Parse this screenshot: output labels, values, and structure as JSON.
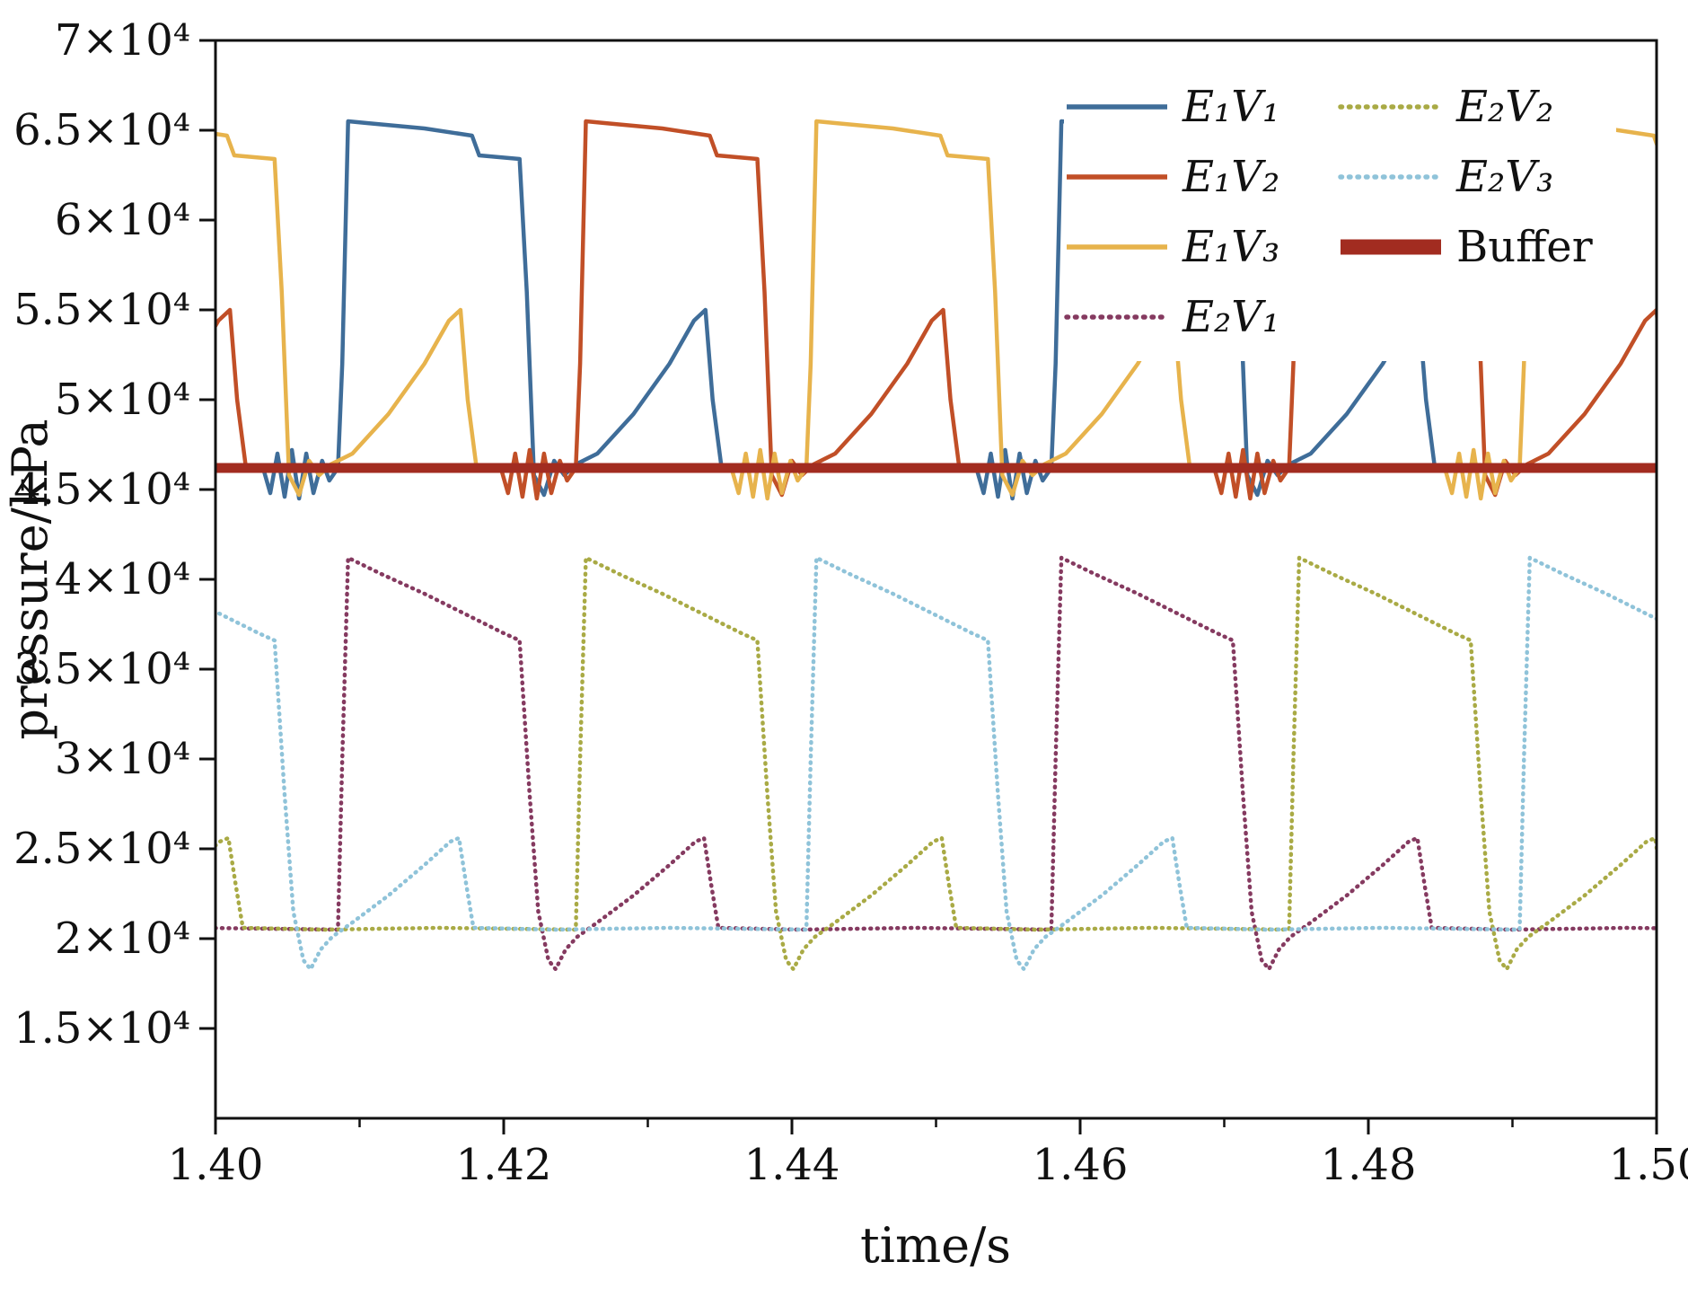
{
  "figure_title": "",
  "chart_data": {
    "type": "line",
    "title": "",
    "xlabel": "time/s",
    "ylabel": "pressure/kPa",
    "xlim": [
      1.4,
      1.5
    ],
    "ylim": [
      10000,
      70000
    ],
    "grid": false,
    "legend_position": "upper-right-inside",
    "x_ticks": [
      1.4,
      1.42,
      1.44,
      1.46,
      1.48,
      1.5
    ],
    "x_tick_labels": [
      "1.40",
      "1.42",
      "1.44",
      "1.46",
      "1.48",
      "1.50"
    ],
    "x_minor_ticks": [
      1.41,
      1.43,
      1.45,
      1.47,
      1.49
    ],
    "y_ticks": [
      70000,
      65000,
      60000,
      55000,
      50000,
      45000,
      40000,
      35000,
      30000,
      25000,
      20000,
      15000
    ],
    "y_tick_labels": [
      "7×10⁴",
      "6.5×10⁴",
      "6×10⁴",
      "5.5×10⁴",
      "5×10⁴",
      "4.5×10⁴",
      "4×10⁴",
      "3.5×10⁴",
      "3×10⁴",
      "2.5×10⁴",
      "2×10⁴",
      "1.5×10⁴"
    ],
    "period_s": 0.0495,
    "cycles": {
      "e1": [
        [
          0.0,
          46200
        ],
        [
          0.0003,
          52000
        ],
        [
          0.0007,
          65500
        ],
        [
          0.002,
          65400
        ],
        [
          0.006,
          65100
        ],
        [
          0.0093,
          64700
        ],
        [
          0.0098,
          63600
        ],
        [
          0.0126,
          63400
        ],
        [
          0.0131,
          56000
        ],
        [
          0.0136,
          45800
        ],
        [
          0.0143,
          44700
        ],
        [
          0.015,
          46600
        ],
        [
          0.0157,
          45800
        ],
        [
          0.0165,
          46400
        ],
        [
          0.018,
          47000
        ],
        [
          0.0205,
          49200
        ],
        [
          0.023,
          52000
        ],
        [
          0.0247,
          54400
        ],
        [
          0.0255,
          55000
        ],
        [
          0.026,
          50000
        ],
        [
          0.0266,
          46300
        ],
        [
          0.032,
          46200
        ],
        [
          0.039,
          46200
        ],
        [
          0.0443,
          46200
        ],
        [
          0.0448,
          44800
        ],
        [
          0.0453,
          47000
        ],
        [
          0.0458,
          44600
        ],
        [
          0.0463,
          47200
        ],
        [
          0.0468,
          44500
        ],
        [
          0.0473,
          47000
        ],
        [
          0.0478,
          44800
        ],
        [
          0.0484,
          46600
        ],
        [
          0.0489,
          45500
        ],
        [
          0.0495,
          46200
        ]
      ],
      "e2": [
        [
          0.0,
          20500
        ],
        [
          0.0003,
          30000
        ],
        [
          0.0007,
          41200
        ],
        [
          0.003,
          40300
        ],
        [
          0.006,
          39200
        ],
        [
          0.009,
          38000
        ],
        [
          0.0115,
          37000
        ],
        [
          0.0126,
          36600
        ],
        [
          0.0133,
          28000
        ],
        [
          0.0139,
          21500
        ],
        [
          0.0146,
          18800
        ],
        [
          0.0151,
          18300
        ],
        [
          0.0158,
          19400
        ],
        [
          0.0166,
          20100
        ],
        [
          0.018,
          20900
        ],
        [
          0.0205,
          22400
        ],
        [
          0.023,
          24100
        ],
        [
          0.0248,
          25400
        ],
        [
          0.0254,
          25600
        ],
        [
          0.0259,
          23000
        ],
        [
          0.0264,
          20600
        ],
        [
          0.032,
          20500
        ],
        [
          0.04,
          20600
        ],
        [
          0.0495,
          20500
        ]
      ]
    },
    "series": [
      {
        "key": "e1v1",
        "name": "E₁V₁",
        "color": "#3f6d99",
        "line": "solid",
        "width": 4.5,
        "phase_plateau_start_s": 1.4085,
        "cycle_ref": "e1"
      },
      {
        "key": "e1v2",
        "name": "E₁V₂",
        "color": "#c14f27",
        "line": "solid",
        "width": 4.5,
        "phase_plateau_start_s": 1.425,
        "cycle_ref": "e1"
      },
      {
        "key": "e1v3",
        "name": "E₁V₃",
        "color": "#e7b34c",
        "line": "solid",
        "width": 4.5,
        "phase_plateau_start_s": 1.3915,
        "cycle_ref": "e1"
      },
      {
        "key": "e2v1",
        "name": "E₂V₁",
        "color": "#853a60",
        "line": "dotted",
        "width": 4.5,
        "phase_plateau_start_s": 1.4085,
        "cycle_ref": "e2"
      },
      {
        "key": "e2v2",
        "name": "E₂V₂",
        "color": "#a9aa45",
        "line": "dotted",
        "width": 4.5,
        "phase_plateau_start_s": 1.425,
        "cycle_ref": "e2"
      },
      {
        "key": "e2v3",
        "name": "E₂V₃",
        "color": "#8fc3d9",
        "line": "dotted",
        "width": 4.5,
        "phase_plateau_start_s": 1.3915,
        "cycle_ref": "e2"
      },
      {
        "key": "buffer",
        "name": "Buffer",
        "color": "#a22c20",
        "line": "solid",
        "width": 11,
        "constant_kpa": 46200
      }
    ]
  },
  "legend": {
    "columns": [
      {
        "items": [
          {
            "label": "E₁V₁",
            "series": "e1v1"
          },
          {
            "label": "E₁V₂",
            "series": "e1v2"
          },
          {
            "label": "E₁V₃",
            "series": "e1v3"
          },
          {
            "label": "E₂V₁",
            "series": "e2v1"
          }
        ]
      },
      {
        "items": [
          {
            "label": "E₂V₂",
            "series": "e2v2"
          },
          {
            "label": "E₂V₃",
            "series": "e2v3"
          },
          {
            "label": "Buffer",
            "series": "buffer",
            "upright": true
          }
        ]
      }
    ]
  },
  "colors": {
    "axis": "#111111",
    "background": "#ffffff"
  }
}
